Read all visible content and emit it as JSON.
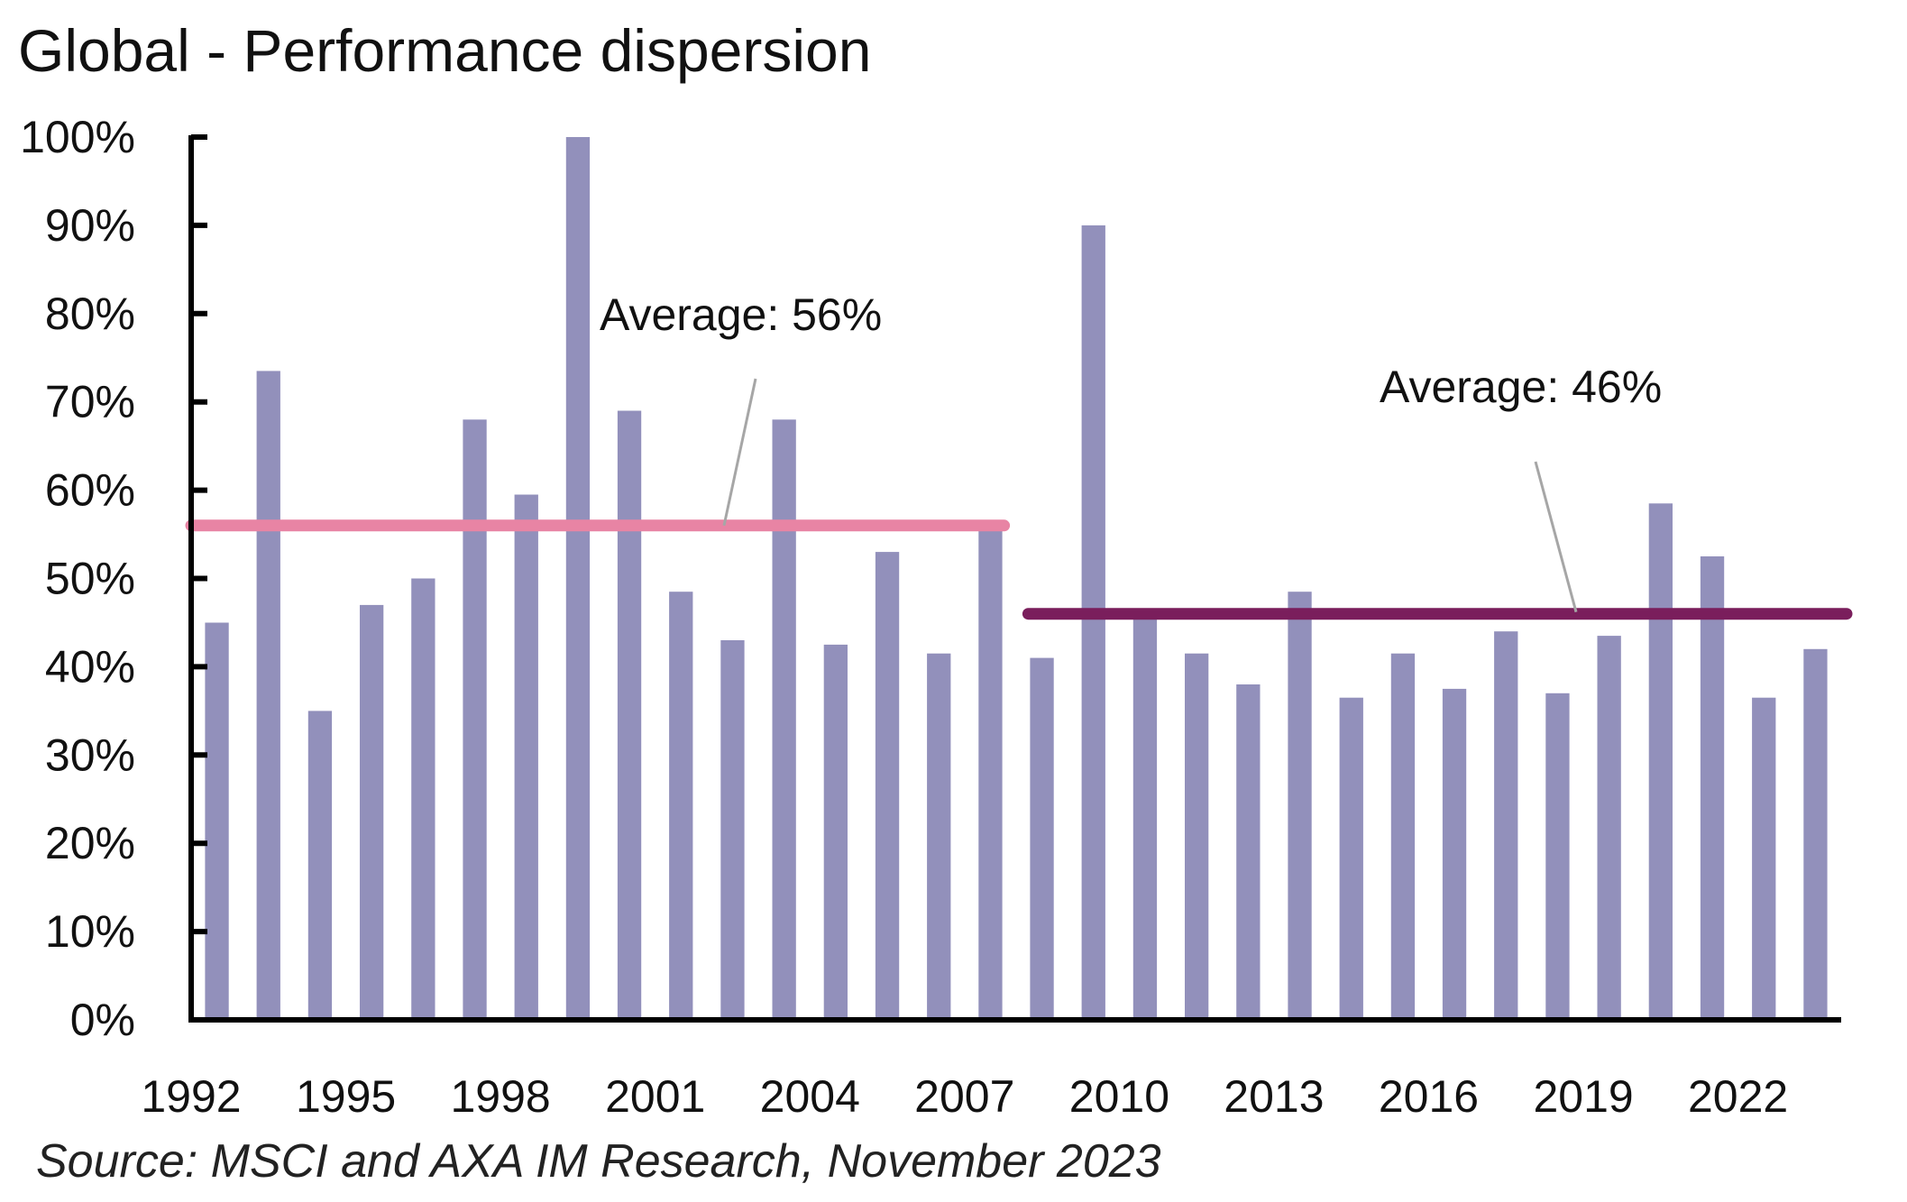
{
  "chart_data": {
    "type": "bar",
    "title": "Global - Performance dispersion",
    "source": "Source: MSCI and AXA IM Research, November 2023",
    "xlabel": "",
    "ylabel": "",
    "ylim": [
      0,
      100
    ],
    "y_ticks": [
      "0%",
      "10%",
      "20%",
      "30%",
      "40%",
      "50%",
      "60%",
      "70%",
      "80%",
      "90%",
      "100%"
    ],
    "x_tick_labels": [
      "1992",
      "1995",
      "1998",
      "2001",
      "2004",
      "2007",
      "2010",
      "2013",
      "2016",
      "2019",
      "2022"
    ],
    "categories": [
      "1992",
      "1993",
      "1994",
      "1995",
      "1996",
      "1997",
      "1998",
      "1999",
      "2000",
      "2001",
      "2002",
      "2003",
      "2004",
      "2005",
      "2006",
      "2007",
      "2008",
      "2009",
      "2010",
      "2011",
      "2012",
      "2013",
      "2014",
      "2015",
      "2016",
      "2017",
      "2018",
      "2019",
      "2020",
      "2021",
      "2022",
      "2023"
    ],
    "values": [
      45,
      73.5,
      35,
      47,
      50,
      68,
      59.5,
      100,
      69,
      48.5,
      43,
      68,
      42.5,
      53,
      41.5,
      56,
      41,
      90,
      46.5,
      41.5,
      38,
      48.5,
      36.5,
      41.5,
      37.5,
      44,
      37,
      43.5,
      58.5,
      52.5,
      36.5,
      42
    ],
    "bar_color": "#9290bb",
    "averages": [
      {
        "label": "Average: 56%",
        "value": 56,
        "from": "1992",
        "to": "2007",
        "color": "#e884a4"
      },
      {
        "label": "Average: 46%",
        "value": 46,
        "from": "2008",
        "to": "2023",
        "color": "#7a1e5c"
      }
    ],
    "grid": false,
    "legend": "none"
  }
}
